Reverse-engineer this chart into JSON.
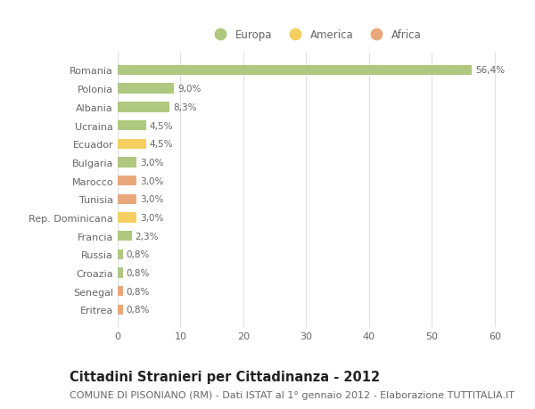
{
  "countries": [
    "Romania",
    "Polonia",
    "Albania",
    "Ucraina",
    "Ecuador",
    "Bulgaria",
    "Marocco",
    "Tunisia",
    "Rep. Dominicana",
    "Francia",
    "Russia",
    "Croazia",
    "Senegal",
    "Eritrea"
  ],
  "values": [
    56.4,
    9.0,
    8.3,
    4.5,
    4.5,
    3.0,
    3.0,
    3.0,
    3.0,
    2.3,
    0.8,
    0.8,
    0.8,
    0.8
  ],
  "labels": [
    "56,4%",
    "9,0%",
    "8,3%",
    "4,5%",
    "4,5%",
    "3,0%",
    "3,0%",
    "3,0%",
    "3,0%",
    "2,3%",
    "0,8%",
    "0,8%",
    "0,8%",
    "0,8%"
  ],
  "continents": [
    "Europa",
    "Europa",
    "Europa",
    "Europa",
    "America",
    "Europa",
    "Africa",
    "Africa",
    "America",
    "Europa",
    "Europa",
    "Europa",
    "Africa",
    "Africa"
  ],
  "colors": {
    "Europa": "#aec97f",
    "America": "#f5d061",
    "Africa": "#e8a87c"
  },
  "title": "Cittadini Stranieri per Cittadinanza - 2012",
  "subtitle": "COMUNE DI PISONIANO (RM) - Dati ISTAT al 1° gennaio 2012 - Elaborazione TUTTITALIA.IT",
  "xlabel_ticks": [
    0,
    10,
    20,
    30,
    40,
    50,
    60
  ],
  "xlim": [
    0,
    63
  ],
  "background_color": "#ffffff",
  "grid_color": "#e0e0e0",
  "bar_height": 0.55,
  "title_fontsize": 10.5,
  "subtitle_fontsize": 8,
  "label_fontsize": 7.5,
  "tick_fontsize": 8,
  "legend_fontsize": 8.5,
  "text_color": "#666666"
}
